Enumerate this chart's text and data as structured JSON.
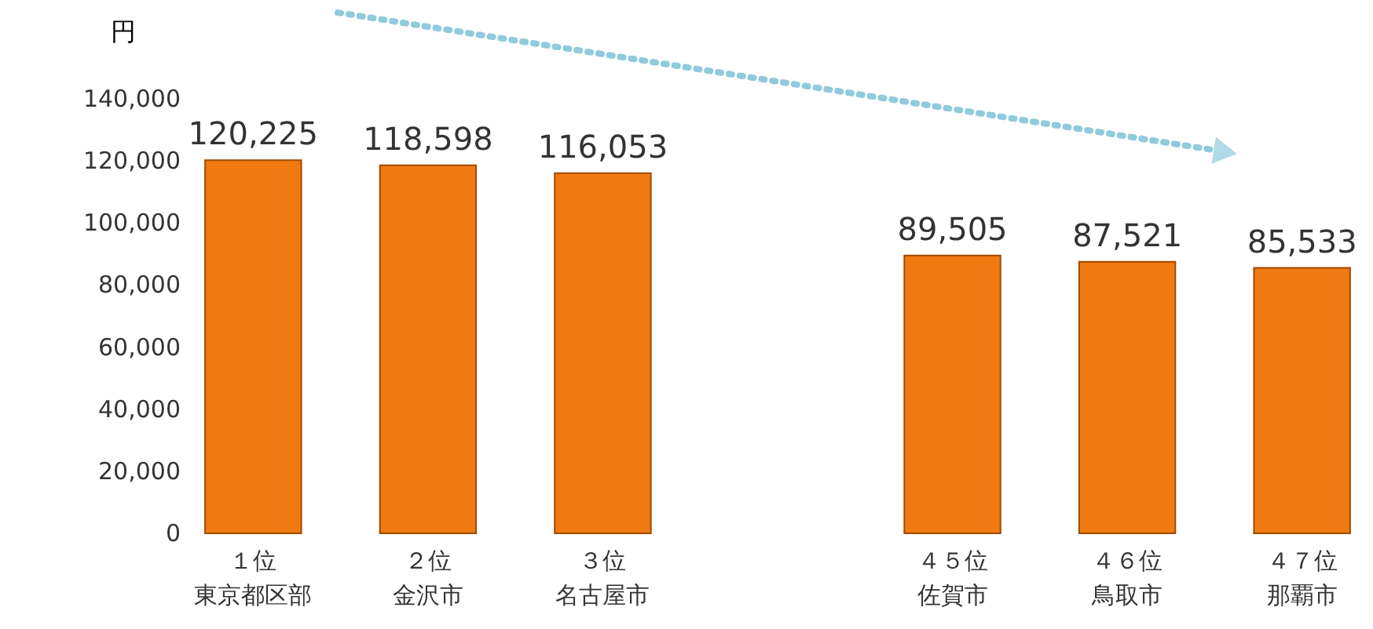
{
  "chart_data": {
    "type": "bar",
    "ylabel": "円",
    "categories": [
      "１位東京都区部",
      "２位金沢市",
      "３位名古屋市",
      null,
      "４５位佐賀市",
      "４６位鳥取市",
      "４７位那覇市"
    ],
    "values": [
      120225,
      118598,
      116053,
      null,
      89505,
      87521,
      85533
    ],
    "value_labels": [
      "120,225",
      "118,598",
      "116,053",
      null,
      "89,505",
      "87,521",
      "85,533"
    ],
    "color": "#f07a12",
    "ylim": [
      0,
      140000
    ],
    "yticks": [
      {
        "value": 0,
        "label": "0"
      },
      {
        "value": 20000,
        "label": "20,000"
      },
      {
        "value": 40000,
        "label": "40,000"
      },
      {
        "value": 60000,
        "label": "60,000"
      },
      {
        "value": 80000,
        "label": "80,000"
      },
      {
        "value": 100000,
        "label": "100,000"
      },
      {
        "value": 120000,
        "label": "120,000"
      },
      {
        "value": 140000,
        "label": "140,000"
      }
    ],
    "grid": false
  }
}
